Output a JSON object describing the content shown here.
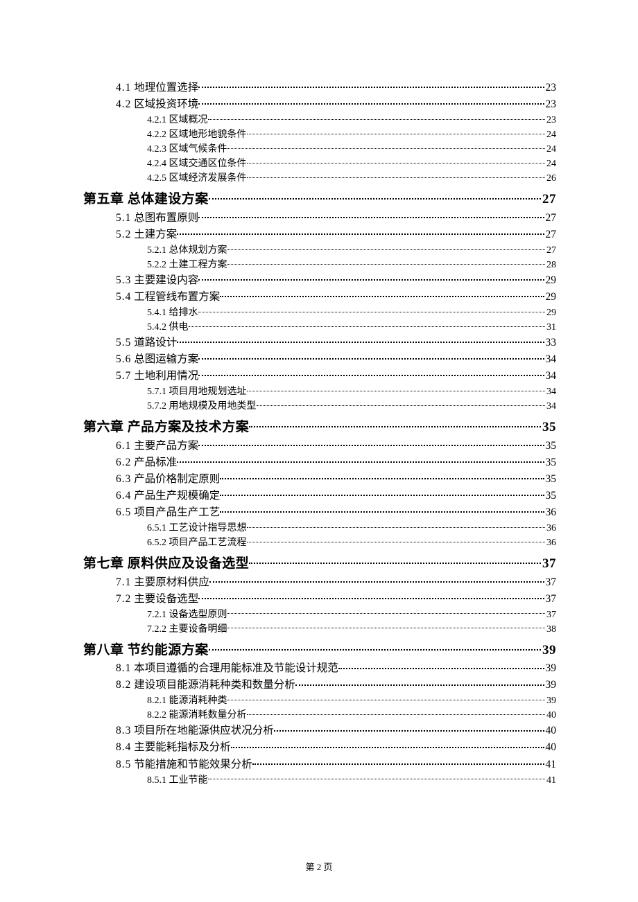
{
  "footer": "第 2 页",
  "entries": [
    {
      "level": 1,
      "num": "4.1",
      "title": "地理位置选择",
      "page": "23"
    },
    {
      "level": 1,
      "num": "4.2",
      "title": "区域投资环境",
      "page": "23"
    },
    {
      "level": 2,
      "num": "4.2.1",
      "title": "区域概况",
      "page": "23"
    },
    {
      "level": 2,
      "num": "4.2.2",
      "title": "区域地形地貌条件",
      "page": "24"
    },
    {
      "level": 2,
      "num": "4.2.3",
      "title": "区域气候条件",
      "page": "24"
    },
    {
      "level": 2,
      "num": "4.2.4",
      "title": "区域交通区位条件",
      "page": "24"
    },
    {
      "level": 2,
      "num": "4.2.5",
      "title": "区域经济发展条件",
      "page": "26"
    },
    {
      "level": 0,
      "num": "第五章",
      "title": "总体建设方案",
      "page": "27"
    },
    {
      "level": 1,
      "num": "5.1",
      "title": "总图布置原则",
      "page": "27"
    },
    {
      "level": 1,
      "num": "5.2",
      "title": "土建方案",
      "page": "27"
    },
    {
      "level": 2,
      "num": "5.2.1",
      "title": "总体规划方案",
      "page": "27"
    },
    {
      "level": 2,
      "num": "5.2.2",
      "title": "土建工程方案",
      "page": "28"
    },
    {
      "level": 1,
      "num": "5.3",
      "title": "主要建设内容",
      "page": "29"
    },
    {
      "level": 1,
      "num": "5.4",
      "title": "工程管线布置方案",
      "page": "29"
    },
    {
      "level": 2,
      "num": "5.4.1",
      "title": "给排水",
      "page": "29"
    },
    {
      "level": 2,
      "num": "5.4.2",
      "title": "供电",
      "page": "31"
    },
    {
      "level": 1,
      "num": "5.5",
      "title": "道路设计",
      "page": "33"
    },
    {
      "level": 1,
      "num": "5.6",
      "title": "总图运输方案",
      "page": "34"
    },
    {
      "level": 1,
      "num": "5.7",
      "title": "土地利用情况",
      "page": "34"
    },
    {
      "level": 2,
      "num": "5.7.1",
      "title": "项目用地规划选址",
      "page": "34"
    },
    {
      "level": 2,
      "num": "5.7.2",
      "title": "用地规模及用地类型",
      "page": "34"
    },
    {
      "level": 0,
      "num": "第六章",
      "title": "产品方案及技术方案",
      "page": "35"
    },
    {
      "level": 1,
      "num": "6.1",
      "title": "主要产品方案",
      "page": "35"
    },
    {
      "level": 1,
      "num": "6.2",
      "title": "产品标准",
      "page": "35"
    },
    {
      "level": 1,
      "num": "6.3",
      "title": "产品价格制定原则",
      "page": "35"
    },
    {
      "level": 1,
      "num": "6.4",
      "title": "产品生产规模确定",
      "page": "35"
    },
    {
      "level": 1,
      "num": "6.5",
      "title": "项目产品生产工艺",
      "page": "36"
    },
    {
      "level": 2,
      "num": "6.5.1",
      "title": "工艺设计指导思想",
      "page": "36"
    },
    {
      "level": 2,
      "num": "6.5.2",
      "title": "项目产品工艺流程",
      "page": "36"
    },
    {
      "level": 0,
      "num": "第七章",
      "title": "原料供应及设备选型",
      "page": "37"
    },
    {
      "level": 1,
      "num": "7.1",
      "title": "主要原材料供应",
      "page": "37"
    },
    {
      "level": 1,
      "num": "7.2",
      "title": "主要设备选型",
      "page": "37"
    },
    {
      "level": 2,
      "num": "7.2.1",
      "title": "设备选型原则",
      "page": "37"
    },
    {
      "level": 2,
      "num": "7.2.2",
      "title": "主要设备明细",
      "page": "38"
    },
    {
      "level": 0,
      "num": "第八章",
      "title": "节约能源方案",
      "page": "39"
    },
    {
      "level": 1,
      "num": "8.1",
      "title": "本项目遵循的合理用能标准及节能设计规范",
      "page": "39"
    },
    {
      "level": 1,
      "num": "8.2",
      "title": "建设项目能源消耗种类和数量分析",
      "page": "39"
    },
    {
      "level": 2,
      "num": "8.2.1",
      "title": "能源消耗种类",
      "page": "39"
    },
    {
      "level": 2,
      "num": "8.2.2",
      "title": "能源消耗数量分析",
      "page": "40"
    },
    {
      "level": 1,
      "num": "8.3",
      "title": "项目所在地能源供应状况分析",
      "page": "40"
    },
    {
      "level": 1,
      "num": "8.4",
      "title": "主要能耗指标及分析",
      "page": "40"
    },
    {
      "level": 1,
      "num": "8.5",
      "title": "节能措施和节能效果分析",
      "page": "41"
    },
    {
      "level": 2,
      "num": "8.5.1",
      "title": "工业节能",
      "page": "41"
    }
  ]
}
